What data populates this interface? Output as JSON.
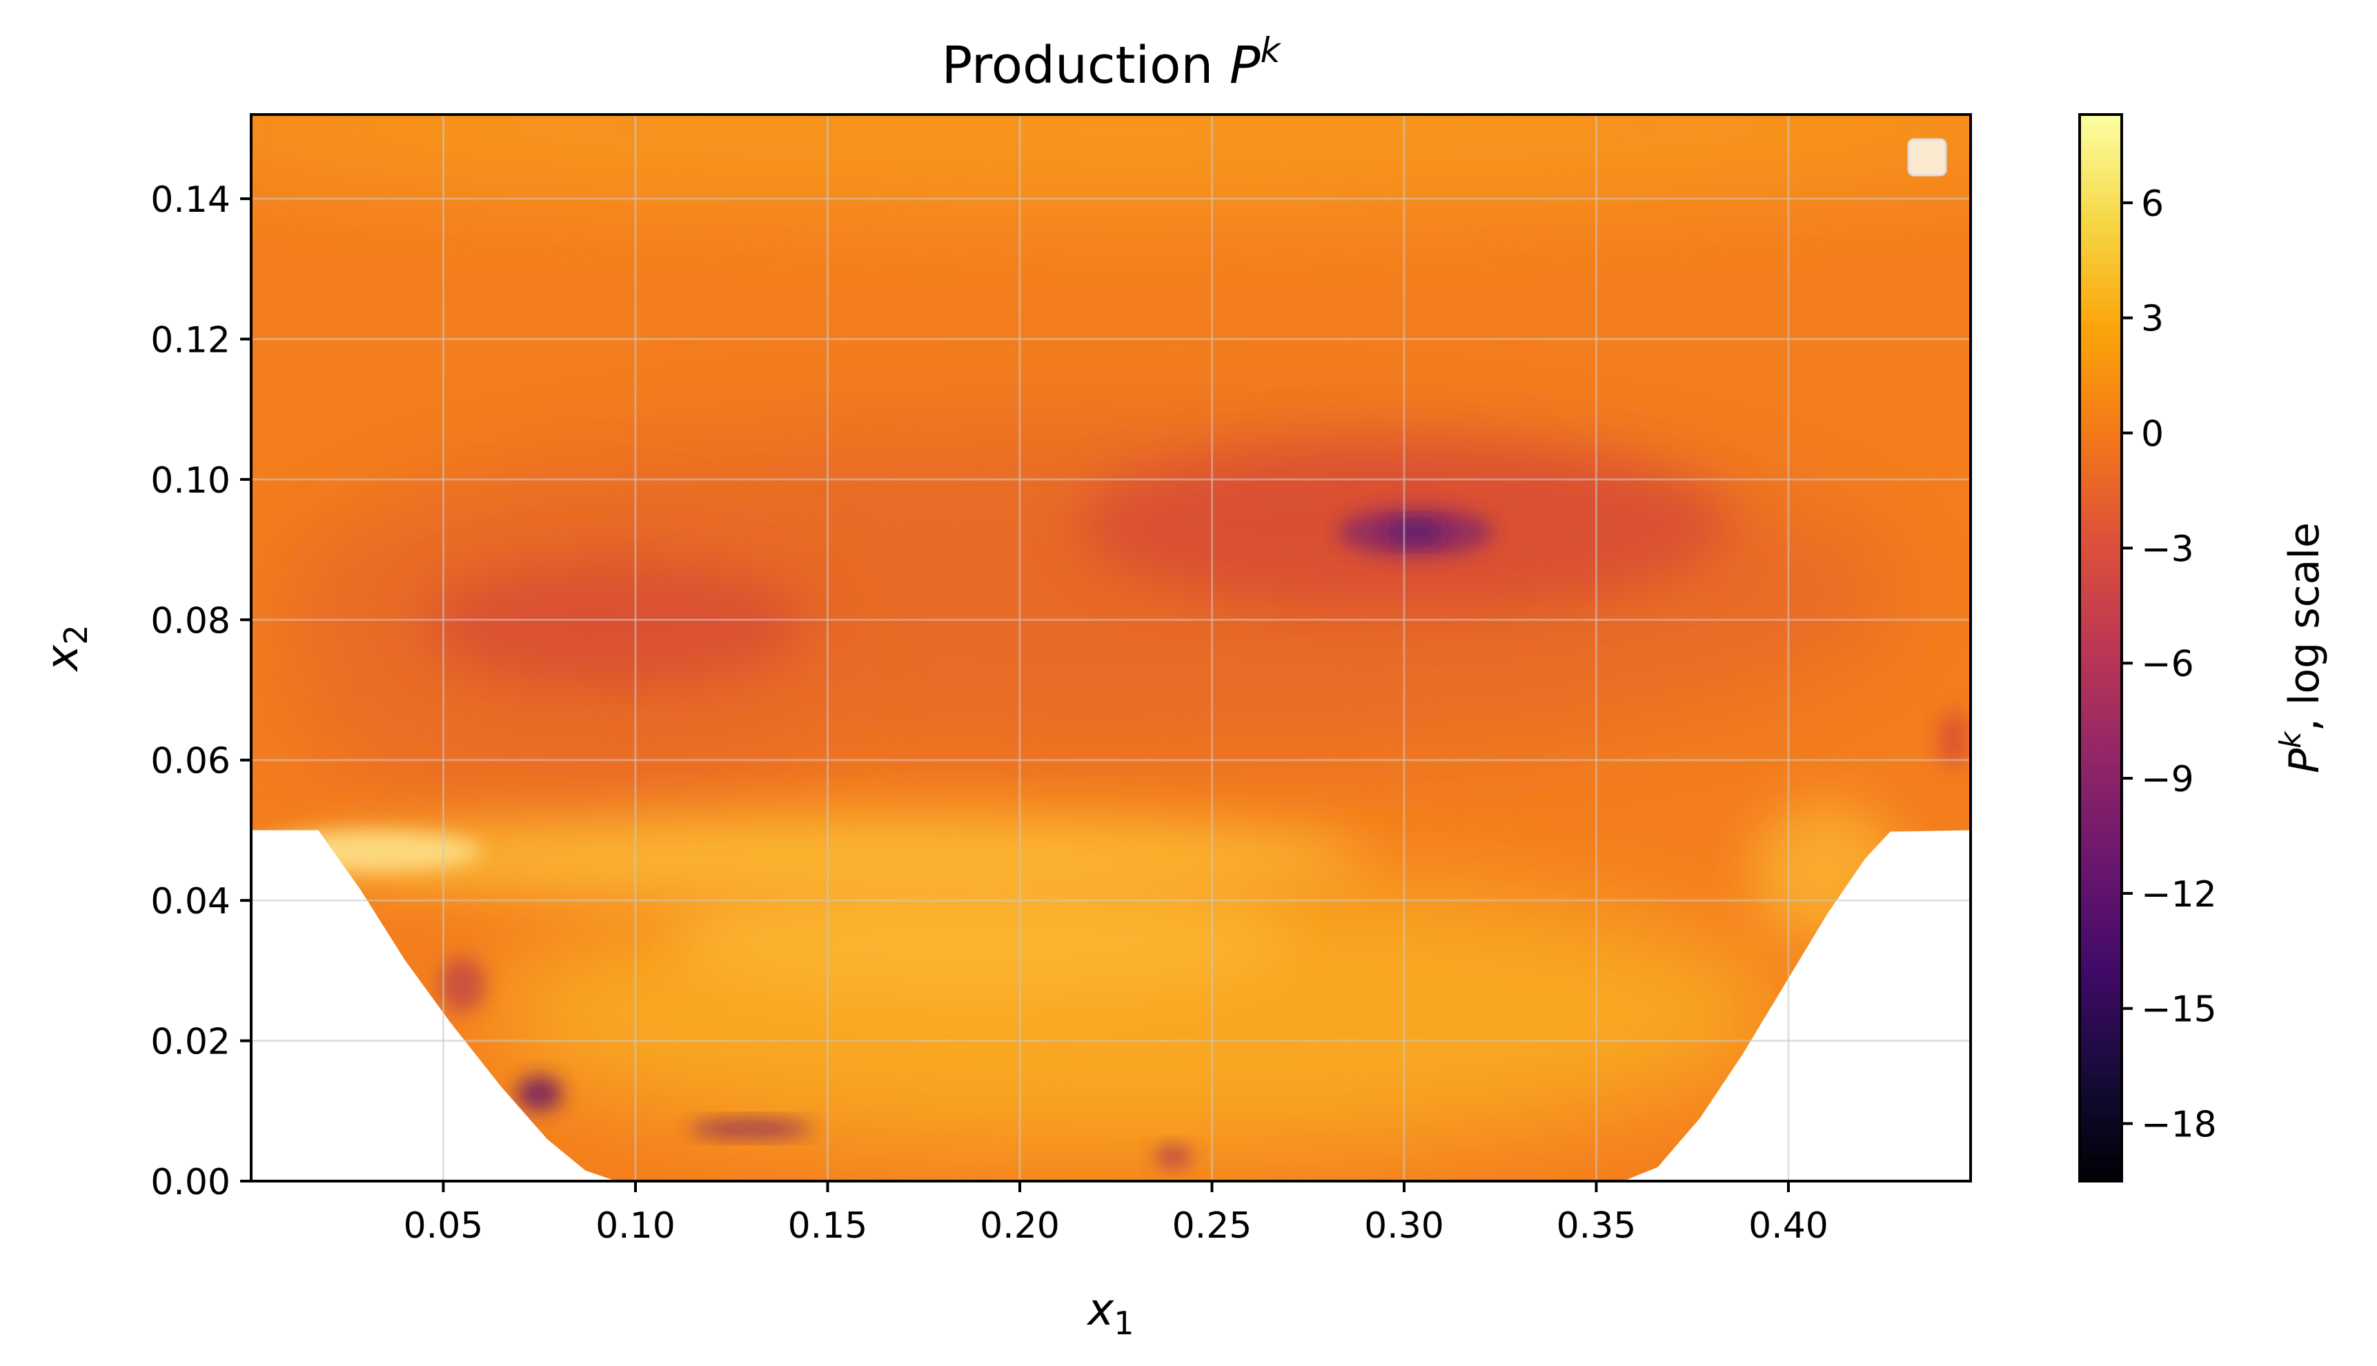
{
  "chart_data": {
    "type": "heatmap",
    "title": "Production",
    "title_math": "P",
    "title_sup": "k",
    "xlabel": "x",
    "xlabel_sub": "1",
    "ylabel": "x",
    "ylabel_sub": "2",
    "xlim": [
      0.0,
      0.4474
    ],
    "ylim": [
      0.0,
      0.152
    ],
    "xticks": [
      0.05,
      0.1,
      0.15,
      0.2,
      0.25,
      0.3,
      0.35,
      0.4
    ],
    "xtick_labels": [
      "0.05",
      "0.10",
      "0.15",
      "0.20",
      "0.25",
      "0.30",
      "0.35",
      "0.40"
    ],
    "yticks": [
      0.0,
      0.02,
      0.04,
      0.06,
      0.08,
      0.1,
      0.12,
      0.14
    ],
    "ytick_labels": [
      "0.00",
      "0.02",
      "0.04",
      "0.06",
      "0.08",
      "0.10",
      "0.12",
      "0.14"
    ],
    "grid": true,
    "legend": "top-right (empty)",
    "colormap": "inferno",
    "colorbar": {
      "label": ", log scale",
      "label_math": "P",
      "label_sup": "k",
      "range": [
        -19.5,
        8.3
      ],
      "ticks": [
        6,
        3,
        0,
        -3,
        -6,
        -9,
        -12,
        -15,
        -18
      ],
      "tick_labels": [
        "6",
        "3",
        "0",
        "−3",
        "−6",
        "−9",
        "−12",
        "−15",
        "−18"
      ]
    },
    "lower_wall": [
      [
        0.0,
        0.05
      ],
      [
        0.0175,
        0.05
      ],
      [
        0.0285,
        0.0415
      ],
      [
        0.04,
        0.0315
      ],
      [
        0.052,
        0.0225
      ],
      [
        0.065,
        0.0135
      ],
      [
        0.077,
        0.006
      ],
      [
        0.087,
        0.0015
      ],
      [
        0.095,
        0.0
      ],
      [
        0.357,
        0.0
      ],
      [
        0.366,
        0.002
      ],
      [
        0.377,
        0.009
      ],
      [
        0.388,
        0.018
      ],
      [
        0.399,
        0.028
      ],
      [
        0.41,
        0.038
      ],
      [
        0.42,
        0.046
      ],
      [
        0.4265,
        0.0498
      ],
      [
        0.4474,
        0.05
      ]
    ],
    "features": [
      {
        "label": "low-production vortex core",
        "x": 0.303,
        "y": 0.0925,
        "value": -11
      },
      {
        "label": "low-production region",
        "x": 0.095,
        "y": 0.0795,
        "value": -4
      },
      {
        "label": "wall minimum",
        "x": 0.075,
        "y": 0.0125,
        "value": -9
      },
      {
        "label": "wall minimum",
        "x": 0.13,
        "y": 0.0075,
        "value": -8
      },
      {
        "label": "wall minimum",
        "x": 0.24,
        "y": 0.0035,
        "value": -5
      },
      {
        "label": "shear layer",
        "x": 0.16,
        "y": 0.045,
        "value": 5
      },
      {
        "label": "high-production region",
        "x": 0.19,
        "y": 0.035,
        "value": 5
      },
      {
        "label": "right-wall minimum",
        "x": 0.443,
        "y": 0.063,
        "value": -3
      }
    ],
    "colors": {
      "background_field": "#f47d1e",
      "upper_band": "#f8991e",
      "mid_band": "#e86a25",
      "shear_layer": "#fbb532",
      "near_wall": "#f9a722",
      "low_region": "#d84c35",
      "vortex_core": "#5b1a6d",
      "spine": "#000000",
      "grid": "#c9c9c9"
    }
  }
}
